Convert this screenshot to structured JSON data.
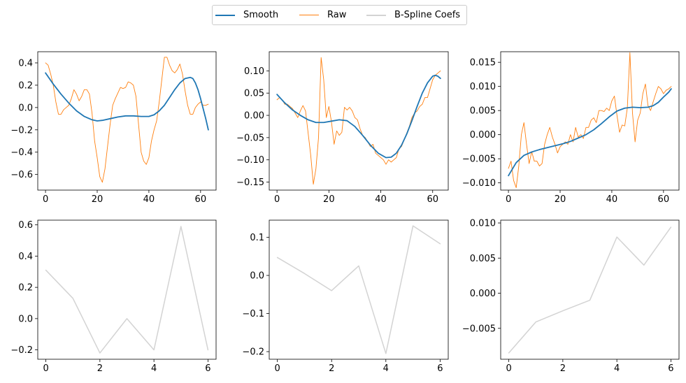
{
  "legend": {
    "items": [
      {
        "label": "Smooth",
        "color": "#1f77b4"
      },
      {
        "label": "Raw",
        "color": "#ff7f0e"
      },
      {
        "label": "B-Spline Coefs",
        "color": "#d3d3d3"
      }
    ]
  },
  "chart_data": [
    {
      "type": "line",
      "xlim": [
        -3,
        66
      ],
      "ylim": [
        -0.74,
        0.5
      ],
      "xticks": [
        0,
        20,
        40,
        60
      ],
      "xtick_labels": [
        "0",
        "20",
        "40",
        "60"
      ],
      "yticks": [
        -0.6,
        -0.4,
        -0.2,
        0.0,
        0.2,
        0.4
      ],
      "ytick_labels": [
        "−0.6",
        "−0.4",
        "−0.2",
        "0.0",
        "0.2",
        "0.4"
      ],
      "series": [
        {
          "name": "Raw",
          "color": "#ff7f0e",
          "width": 0.9,
          "x": [
            0,
            1,
            2,
            3,
            4,
            5,
            6,
            7,
            8,
            9,
            10,
            11,
            12,
            13,
            14,
            15,
            16,
            17,
            18,
            19,
            20,
            21,
            22,
            23,
            24,
            25,
            26,
            27,
            28,
            29,
            30,
            31,
            32,
            33,
            34,
            35,
            36,
            37,
            38,
            39,
            40,
            41,
            42,
            43,
            44,
            45,
            46,
            47,
            48,
            49,
            50,
            51,
            52,
            53,
            54,
            55,
            56,
            57,
            58,
            59,
            60,
            61,
            62,
            63
          ],
          "y": [
            0.4,
            0.38,
            0.3,
            0.2,
            0.05,
            -0.06,
            -0.06,
            -0.02,
            0.0,
            0.02,
            0.08,
            0.16,
            0.12,
            0.06,
            0.1,
            0.16,
            0.16,
            0.12,
            -0.05,
            -0.3,
            -0.45,
            -0.62,
            -0.67,
            -0.55,
            -0.35,
            -0.15,
            0.02,
            0.08,
            0.13,
            0.18,
            0.17,
            0.18,
            0.23,
            0.22,
            0.2,
            0.1,
            -0.15,
            -0.4,
            -0.48,
            -0.51,
            -0.45,
            -0.3,
            -0.2,
            -0.12,
            0.05,
            0.25,
            0.45,
            0.45,
            0.38,
            0.33,
            0.31,
            0.34,
            0.39,
            0.3,
            0.15,
            0.02,
            -0.06,
            -0.06,
            0.0,
            0.03,
            0.05,
            0.02,
            0.02,
            0.03
          ]
        },
        {
          "name": "Smooth",
          "color": "#1f77b4",
          "width": 1.8,
          "x": [
            0,
            3,
            6,
            9,
            12,
            15,
            18,
            20,
            22,
            25,
            28,
            31,
            34,
            37,
            40,
            42,
            44,
            46,
            48,
            50,
            52,
            54,
            56,
            57,
            58,
            59,
            60,
            61,
            62,
            63
          ],
          "y": [
            0.31,
            0.21,
            0.12,
            0.04,
            -0.03,
            -0.08,
            -0.11,
            -0.12,
            -0.115,
            -0.1,
            -0.085,
            -0.075,
            -0.075,
            -0.08,
            -0.08,
            -0.065,
            -0.03,
            0.02,
            0.09,
            0.16,
            0.22,
            0.26,
            0.27,
            0.26,
            0.22,
            0.16,
            0.08,
            -0.01,
            -0.1,
            -0.2
          ]
        }
      ]
    },
    {
      "type": "line",
      "xlim": [
        -3,
        66
      ],
      "ylim": [
        -0.168,
        0.143
      ],
      "xticks": [
        0,
        20,
        40,
        60
      ],
      "xtick_labels": [
        "0",
        "20",
        "40",
        "60"
      ],
      "yticks": [
        -0.15,
        -0.1,
        -0.05,
        0.0,
        0.05,
        0.1
      ],
      "ytick_labels": [
        "−0.15",
        "−0.10",
        "−0.05",
        "0.00",
        "0.05",
        "0.10"
      ],
      "series": [
        {
          "name": "Raw",
          "color": "#ff7f0e",
          "width": 0.9,
          "x": [
            0,
            1,
            2,
            3,
            4,
            5,
            6,
            7,
            8,
            9,
            10,
            11,
            12,
            13,
            14,
            15,
            16,
            17,
            18,
            19,
            20,
            21,
            22,
            23,
            24,
            25,
            26,
            27,
            28,
            29,
            30,
            31,
            32,
            33,
            34,
            35,
            36,
            37,
            38,
            39,
            40,
            41,
            42,
            43,
            44,
            45,
            46,
            47,
            48,
            49,
            50,
            51,
            52,
            53,
            54,
            55,
            56,
            57,
            58,
            59,
            60,
            61,
            62,
            63
          ],
          "y": [
            0.035,
            0.04,
            0.035,
            0.025,
            0.025,
            0.02,
            0.015,
            0.005,
            -0.005,
            0.01,
            0.022,
            0.01,
            -0.04,
            -0.09,
            -0.155,
            -0.12,
            -0.05,
            0.13,
            0.08,
            -0.005,
            0.02,
            -0.015,
            -0.065,
            -0.035,
            -0.045,
            -0.038,
            0.018,
            0.012,
            0.018,
            0.01,
            -0.005,
            -0.01,
            -0.03,
            -0.045,
            -0.05,
            -0.06,
            -0.07,
            -0.065,
            -0.085,
            -0.09,
            -0.095,
            -0.1,
            -0.11,
            -0.1,
            -0.105,
            -0.1,
            -0.095,
            -0.075,
            -0.07,
            -0.055,
            -0.04,
            -0.025,
            -0.005,
            0.005,
            0.01,
            0.02,
            0.025,
            0.04,
            0.04,
            0.06,
            0.08,
            0.09,
            0.095,
            0.1
          ]
        },
        {
          "name": "Smooth",
          "color": "#1f77b4",
          "width": 1.8,
          "x": [
            0,
            3,
            6,
            9,
            12,
            15,
            18,
            21,
            24,
            27,
            30,
            33,
            36,
            39,
            42,
            44,
            46,
            48,
            50,
            52,
            54,
            56,
            58,
            60,
            61,
            62,
            63
          ],
          "y": [
            0.047,
            0.028,
            0.012,
            0.0,
            -0.01,
            -0.016,
            -0.016,
            -0.013,
            -0.01,
            -0.012,
            -0.025,
            -0.045,
            -0.067,
            -0.085,
            -0.095,
            -0.094,
            -0.085,
            -0.067,
            -0.042,
            -0.012,
            0.02,
            0.05,
            0.073,
            0.088,
            0.09,
            0.088,
            0.083
          ]
        }
      ]
    },
    {
      "type": "line",
      "xlim": [
        -3,
        66
      ],
      "ylim": [
        -0.0115,
        0.0172
      ],
      "xticks": [
        0,
        20,
        40,
        60
      ],
      "xtick_labels": [
        "0",
        "20",
        "40",
        "60"
      ],
      "yticks": [
        -0.01,
        -0.005,
        0.0,
        0.005,
        0.01,
        0.015
      ],
      "ytick_labels": [
        "−0.010",
        "−0.005",
        "0.000",
        "0.005",
        "0.010",
        "0.015"
      ],
      "series": [
        {
          "name": "Raw",
          "color": "#ff7f0e",
          "width": 0.9,
          "x": [
            0,
            1,
            2,
            3,
            4,
            5,
            6,
            7,
            8,
            9,
            10,
            11,
            12,
            13,
            14,
            15,
            16,
            17,
            18,
            19,
            20,
            21,
            22,
            23,
            24,
            25,
            26,
            27,
            28,
            29,
            30,
            31,
            32,
            33,
            34,
            35,
            36,
            37,
            38,
            39,
            40,
            41,
            42,
            43,
            44,
            45,
            46,
            47,
            48,
            49,
            50,
            51,
            52,
            53,
            54,
            55,
            56,
            57,
            58,
            59,
            60,
            61,
            62,
            63
          ],
          "y": [
            -0.007,
            -0.0055,
            -0.0095,
            -0.011,
            -0.0065,
            0.0,
            0.0025,
            -0.002,
            -0.006,
            -0.0035,
            -0.0055,
            -0.0055,
            -0.0065,
            -0.006,
            -0.002,
            0.0,
            0.0015,
            -0.0005,
            -0.002,
            -0.0038,
            -0.0025,
            -0.002,
            -0.0015,
            -0.002,
            0.0,
            -0.0015,
            0.0015,
            -0.0005,
            0.0,
            -0.0008,
            0.0015,
            0.0015,
            0.003,
            0.0035,
            0.0025,
            0.005,
            0.005,
            0.0048,
            0.0055,
            0.005,
            0.007,
            0.008,
            0.004,
            0.0005,
            0.002,
            0.0018,
            0.0055,
            0.017,
            0.0045,
            -0.0015,
            0.003,
            0.0045,
            0.0085,
            0.0105,
            0.006,
            0.005,
            0.0068,
            0.0085,
            0.01,
            0.0095,
            0.0085,
            0.0092,
            0.0095,
            0.01
          ]
        },
        {
          "name": "Smooth",
          "color": "#1f77b4",
          "width": 1.8,
          "x": [
            0,
            3,
            6,
            9,
            12,
            15,
            18,
            21,
            24,
            27,
            30,
            33,
            36,
            39,
            42,
            45,
            48,
            51,
            54,
            56,
            58,
            60,
            62,
            63
          ],
          "y": [
            -0.0085,
            -0.0058,
            -0.0043,
            -0.0036,
            -0.0031,
            -0.0027,
            -0.0023,
            -0.0019,
            -0.0014,
            -0.0007,
            0.0,
            0.001,
            0.0023,
            0.0037,
            0.0049,
            0.0055,
            0.0057,
            0.0056,
            0.0057,
            0.006,
            0.0067,
            0.0078,
            0.0088,
            0.0095
          ]
        }
      ]
    },
    {
      "type": "line",
      "xlim": [
        -0.3,
        6.3
      ],
      "ylim": [
        -0.26,
        0.63
      ],
      "xticks": [
        0,
        2,
        4,
        6
      ],
      "xtick_labels": [
        "0",
        "2",
        "4",
        "6"
      ],
      "yticks": [
        -0.2,
        0.0,
        0.2,
        0.4,
        0.6
      ],
      "ytick_labels": [
        "−0.2",
        "0.0",
        "0.2",
        "0.4",
        "0.6"
      ],
      "series": [
        {
          "name": "B-Spline Coefs",
          "color": "#d3d3d3",
          "width": 1.5,
          "x": [
            0,
            1,
            2,
            3,
            4,
            5,
            6
          ],
          "y": [
            0.31,
            0.13,
            -0.22,
            0.0,
            -0.2,
            0.59,
            -0.2
          ]
        }
      ]
    },
    {
      "type": "line",
      "xlim": [
        -0.3,
        6.3
      ],
      "ylim": [
        -0.22,
        0.145
      ],
      "xticks": [
        0,
        2,
        4,
        6
      ],
      "xtick_labels": [
        "0",
        "2",
        "4",
        "6"
      ],
      "yticks": [
        -0.2,
        -0.1,
        0.0,
        0.1
      ],
      "ytick_labels": [
        "−0.2",
        "−0.1",
        "0.0",
        "0.1"
      ],
      "series": [
        {
          "name": "B-Spline Coefs",
          "color": "#d3d3d3",
          "width": 1.5,
          "x": [
            0,
            1,
            2,
            3,
            4,
            5,
            6
          ],
          "y": [
            0.047,
            0.005,
            -0.04,
            0.025,
            -0.205,
            0.13,
            0.083
          ]
        }
      ]
    },
    {
      "type": "line",
      "xlim": [
        -0.3,
        6.3
      ],
      "ylim": [
        -0.0094,
        0.0104
      ],
      "xticks": [
        0,
        2,
        4,
        6
      ],
      "xtick_labels": [
        "0",
        "2",
        "4",
        "6"
      ],
      "yticks": [
        -0.005,
        0.0,
        0.005,
        0.01
      ],
      "ytick_labels": [
        "−0.005",
        "0.000",
        "0.005",
        "0.010"
      ],
      "series": [
        {
          "name": "B-Spline Coefs",
          "color": "#d3d3d3",
          "width": 1.5,
          "x": [
            0,
            1,
            2,
            3,
            4,
            5,
            6
          ],
          "y": [
            -0.0085,
            -0.0041,
            -0.0025,
            -0.001,
            0.008,
            0.004,
            0.0094
          ]
        }
      ]
    }
  ]
}
